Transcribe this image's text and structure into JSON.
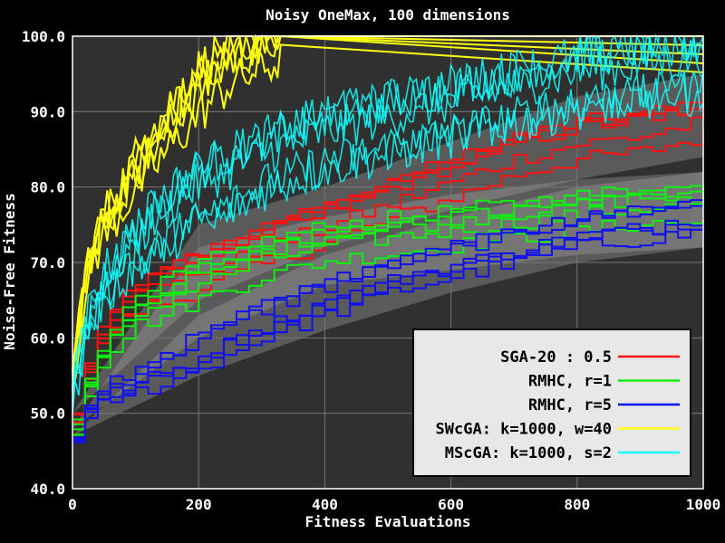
{
  "chart_data": {
    "type": "line",
    "title": "Noisy OneMax, 100 dimensions",
    "xlabel": "Fitness Evaluations",
    "ylabel": "Noise-Free Fitness",
    "xlim": [
      0,
      1000
    ],
    "ylim": [
      40,
      100
    ],
    "xticks": [
      0,
      200,
      400,
      600,
      800,
      1000
    ],
    "yticks": [
      40,
      50,
      60,
      70,
      80,
      90,
      100
    ],
    "xtick_labels": [
      "0",
      "200",
      "400",
      "600",
      "800",
      "1000"
    ],
    "ytick_labels": [
      "40.0",
      "50.0",
      "60.0",
      "70.0",
      "80.0",
      "90.0",
      "100.0"
    ],
    "grid": true,
    "legend_position": "bottom-right",
    "colors": {
      "background": "#000000",
      "plot_area": "#303030",
      "grid": "#777777",
      "text": "#ffffff",
      "band": "#a8a8a8",
      "legend_bg": "#e8e8e8"
    },
    "series": [
      {
        "name": "SGA-20 : 0.5",
        "color": "#ff1010",
        "x": [
          0,
          25,
          50,
          100,
          150,
          200,
          300,
          400,
          500,
          600,
          700,
          800,
          900,
          1000
        ],
        "y": [
          50,
          57,
          62,
          66,
          68,
          70,
          73,
          76,
          79,
          82,
          85,
          87,
          88,
          90
        ],
        "band": [
          [
            0,
            50,
            50
          ],
          [
            200,
            65,
            75
          ],
          [
            400,
            72,
            80
          ],
          [
            600,
            77,
            86
          ],
          [
            800,
            81,
            92
          ],
          [
            1000,
            84,
            95
          ]
        ]
      },
      {
        "name": "RMHC, r=1",
        "color": "#10f010",
        "x": [
          0,
          25,
          50,
          100,
          150,
          200,
          300,
          400,
          500,
          600,
          700,
          800,
          900,
          1000
        ],
        "y": [
          48,
          55,
          59,
          63,
          65,
          67,
          70,
          72,
          73,
          74,
          75,
          76,
          77,
          77
        ],
        "band": [
          [
            0,
            48,
            48
          ],
          [
            200,
            60,
            72
          ],
          [
            400,
            67,
            76
          ],
          [
            600,
            69,
            79
          ],
          [
            800,
            71,
            81
          ],
          [
            1000,
            72,
            82
          ]
        ]
      },
      {
        "name": "RMHC, r=5",
        "color": "#1010f0",
        "x": [
          0,
          25,
          50,
          100,
          150,
          200,
          300,
          400,
          500,
          600,
          700,
          800,
          900,
          1000
        ],
        "y": [
          47,
          51,
          53,
          55,
          57,
          59,
          63,
          66,
          69,
          71,
          73,
          75,
          76,
          77
        ],
        "band": [
          [
            0,
            47,
            47
          ],
          [
            200,
            55,
            63
          ],
          [
            400,
            61,
            71
          ],
          [
            600,
            66,
            76
          ],
          [
            800,
            70,
            80
          ],
          [
            1000,
            72,
            82
          ]
        ]
      },
      {
        "name": "SWcGA: k=1000, w=40",
        "color": "#ffff10",
        "x": [
          0,
          25,
          50,
          100,
          150,
          200,
          250,
          300,
          330
        ],
        "y": [
          55,
          70,
          75,
          82,
          88,
          93,
          97,
          99,
          100
        ],
        "band": []
      },
      {
        "name": "MScGA: k=1000, s=2",
        "color": "#10ffff",
        "x": [
          0,
          25,
          50,
          100,
          150,
          200,
          300,
          400,
          500,
          600,
          700,
          800,
          900,
          1000
        ],
        "y": [
          52,
          62,
          67,
          72,
          76,
          79,
          83,
          86,
          88,
          90,
          92,
          94,
          95,
          96
        ],
        "band": []
      }
    ]
  }
}
